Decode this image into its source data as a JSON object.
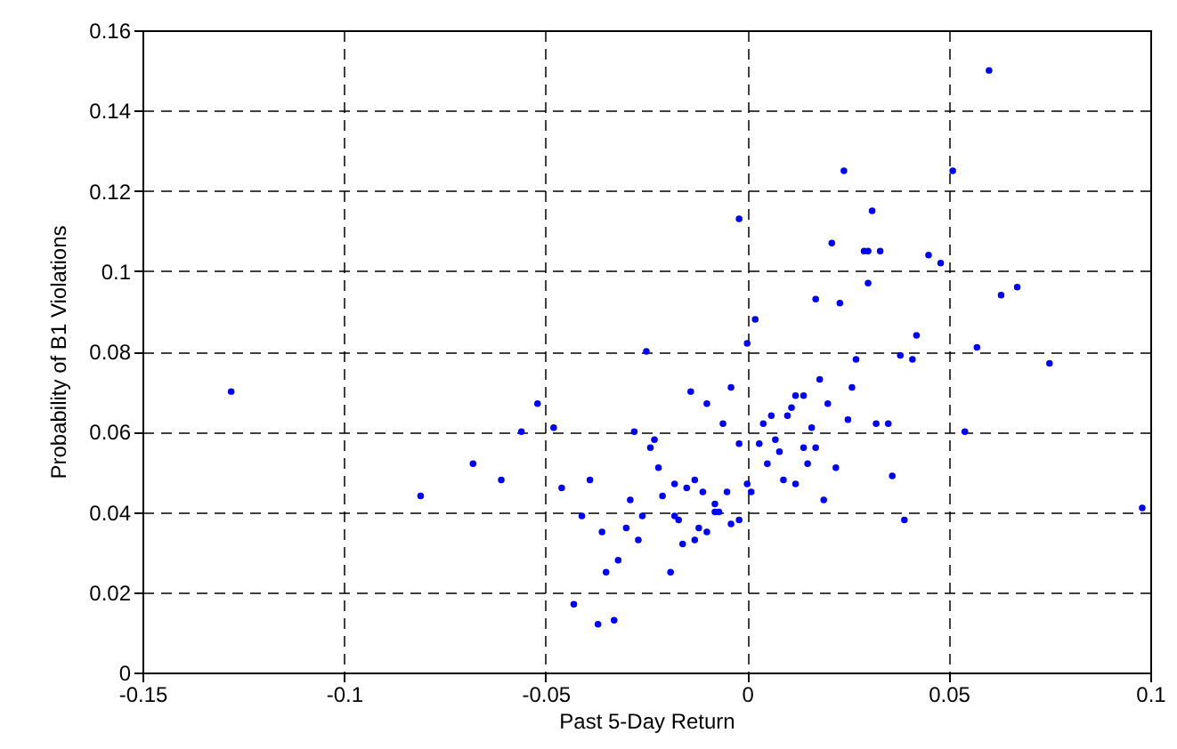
{
  "chart_data": {
    "type": "scatter",
    "xlabel": "Past 5-Day Return",
    "ylabel": "Probability of B1 Violations",
    "xlim": [
      -0.15,
      0.1
    ],
    "xticks": [
      -0.15,
      -0.1,
      -0.05,
      0,
      0.05,
      0.1
    ],
    "ylim": [
      0,
      0.16
    ],
    "yticks": [
      0,
      0.02,
      0.04,
      0.06,
      0.08,
      0.1,
      0.12,
      0.14,
      0.16
    ],
    "grid": true,
    "marker": "circle",
    "series": [
      {
        "color": "#0000ff",
        "x": [
          -0.128,
          -0.081,
          -0.068,
          -0.061,
          -0.056,
          -0.052,
          -0.048,
          -0.046,
          -0.043,
          -0.041,
          -0.039,
          -0.037,
          -0.036,
          -0.035,
          -0.033,
          -0.032,
          -0.03,
          -0.029,
          -0.028,
          -0.027,
          -0.026,
          -0.025,
          -0.024,
          -0.023,
          -0.022,
          -0.021,
          -0.019,
          -0.018,
          -0.018,
          -0.017,
          -0.016,
          -0.015,
          -0.014,
          -0.013,
          -0.013,
          -0.012,
          -0.011,
          -0.01,
          -0.01,
          -0.008,
          -0.008,
          -0.007,
          -0.006,
          -0.005,
          -0.004,
          -0.004,
          -0.002,
          -0.002,
          -0.002,
          0,
          0,
          0.001,
          0.002,
          0.003,
          0.004,
          0.005,
          0.006,
          0.007,
          0.008,
          0.009,
          0.01,
          0.011,
          0.012,
          0.012,
          0.014,
          0.014,
          0.015,
          0.016,
          0.017,
          0.017,
          0.018,
          0.019,
          0.02,
          0.021,
          0.022,
          0.023,
          0.024,
          0.025,
          0.026,
          0.027,
          0.029,
          0.03,
          0.03,
          0.031,
          0.032,
          0.033,
          0.035,
          0.036,
          0.038,
          0.039,
          0.041,
          0.042,
          0.045,
          0.048,
          0.051,
          0.054,
          0.057,
          0.06,
          0.063,
          0.067,
          0.075,
          0.098
        ],
        "values": [
          0.07,
          0.044,
          0.052,
          0.048,
          0.06,
          0.067,
          0.061,
          0.046,
          0.017,
          0.039,
          0.048,
          0.012,
          0.035,
          0.025,
          0.013,
          0.028,
          0.036,
          0.043,
          0.06,
          0.033,
          0.039,
          0.08,
          0.056,
          0.058,
          0.051,
          0.044,
          0.025,
          0.047,
          0.039,
          0.038,
          0.032,
          0.046,
          0.07,
          0.048,
          0.033,
          0.036,
          0.045,
          0.035,
          0.067,
          0.042,
          0.04,
          0.04,
          0.062,
          0.045,
          0.037,
          0.071,
          0.057,
          0.038,
          0.113,
          0.047,
          0.082,
          0.045,
          0.088,
          0.057,
          0.062,
          0.052,
          0.064,
          0.058,
          0.055,
          0.048,
          0.064,
          0.066,
          0.047,
          0.069,
          0.056,
          0.069,
          0.052,
          0.061,
          0.093,
          0.056,
          0.073,
          0.043,
          0.067,
          0.107,
          0.051,
          0.092,
          0.125,
          0.063,
          0.071,
          0.078,
          0.105,
          0.097,
          0.105,
          0.115,
          0.062,
          0.105,
          0.062,
          0.049,
          0.079,
          0.038,
          0.078,
          0.084,
          0.104,
          0.102,
          0.125,
          0.06,
          0.081,
          0.15,
          0.094,
          0.096,
          0.077,
          0.041
        ]
      }
    ]
  }
}
